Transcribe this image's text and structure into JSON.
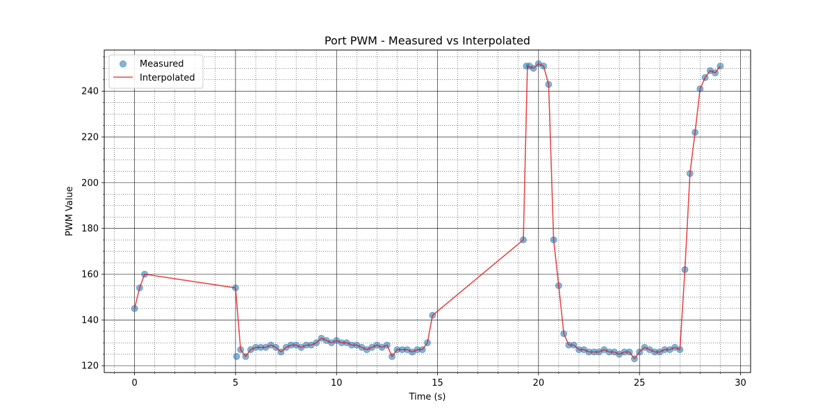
{
  "chart_data": {
    "type": "line",
    "title": "Port PWM - Measured vs Interpolated",
    "xlabel": "Time (s)",
    "ylabel": "PWM Value",
    "xlim": [
      -1.5,
      30.5
    ],
    "ylim": [
      117,
      258
    ],
    "xticks": [
      0,
      5,
      10,
      15,
      20,
      25,
      30
    ],
    "yticks": [
      120,
      140,
      160,
      180,
      200,
      220,
      240
    ],
    "grid": {
      "major": true,
      "minor": true
    },
    "legend": {
      "position": "top-left"
    },
    "colors": {
      "measured": "#1f77b4",
      "interpolated": "#e41a1c"
    },
    "series": [
      {
        "name": "Measured",
        "kind": "scatter",
        "x": [
          0,
          0.25,
          0.5,
          5,
          5.05,
          5.25,
          5.5,
          5.75,
          6,
          6.25,
          6.5,
          6.75,
          7,
          7.25,
          7.5,
          7.75,
          8,
          8.25,
          8.5,
          8.75,
          9,
          9.25,
          9.5,
          9.75,
          10,
          10.25,
          10.5,
          10.75,
          11,
          11.25,
          11.5,
          11.75,
          12,
          12.25,
          12.5,
          12.75,
          13,
          13.25,
          13.5,
          13.75,
          14,
          14.25,
          14.5,
          14.75,
          19.25,
          19.4,
          19.55,
          19.75,
          20,
          20.25,
          20.5,
          20.75,
          21,
          21.25,
          21.5,
          21.75,
          22,
          22.25,
          22.5,
          22.75,
          23,
          23.25,
          23.5,
          23.75,
          24,
          24.25,
          24.5,
          24.75,
          25,
          25.25,
          25.5,
          25.75,
          26,
          26.25,
          26.5,
          26.75,
          27,
          27.25,
          27.5,
          27.75,
          28,
          28.25,
          28.5,
          28.75,
          29
        ],
        "y": [
          145,
          154,
          160,
          154,
          124,
          127,
          124,
          127,
          128,
          128,
          128,
          129,
          128,
          126,
          128,
          129,
          129,
          128,
          129,
          129,
          130,
          132,
          131,
          130,
          131,
          130,
          130,
          129,
          129,
          128,
          127,
          128,
          129,
          128,
          129,
          124,
          127,
          127,
          127,
          126,
          127,
          127,
          130,
          142,
          175,
          251,
          251,
          250,
          252,
          251,
          243,
          175,
          155,
          134,
          129,
          129,
          127,
          127,
          126,
          126,
          126,
          127,
          126,
          126,
          125,
          126,
          126,
          123,
          126,
          128,
          127,
          126,
          126,
          127,
          127,
          128,
          127,
          162,
          204,
          222,
          241,
          246,
          249,
          248,
          251
        ]
      },
      {
        "name": "Interpolated",
        "kind": "line",
        "x": [
          0,
          0.25,
          0.5,
          5,
          5.25,
          5.5,
          5.75,
          6,
          6.25,
          6.5,
          6.75,
          7,
          7.25,
          7.5,
          7.75,
          8,
          8.25,
          8.5,
          8.75,
          9,
          9.25,
          9.5,
          9.75,
          10,
          10.25,
          10.5,
          10.75,
          11,
          11.25,
          11.5,
          11.75,
          12,
          12.25,
          12.5,
          12.75,
          13,
          13.25,
          13.5,
          13.75,
          14,
          14.25,
          14.5,
          14.75,
          19.25,
          19.45,
          19.75,
          20,
          20.25,
          20.5,
          20.75,
          21,
          21.25,
          21.5,
          21.75,
          22,
          22.25,
          22.5,
          22.75,
          23,
          23.25,
          23.5,
          23.75,
          24,
          24.25,
          24.5,
          24.75,
          25,
          25.25,
          25.5,
          25.75,
          26,
          26.25,
          26.5,
          26.75,
          27,
          27.25,
          27.5,
          27.75,
          28,
          28.25,
          28.5,
          28.75,
          29
        ],
        "y": [
          145,
          154,
          160,
          154,
          127,
          124,
          127,
          128,
          128,
          128,
          129,
          128,
          126,
          128,
          129,
          129,
          128,
          129,
          129,
          130,
          132,
          131,
          130,
          131,
          130,
          130,
          129,
          129,
          128,
          127,
          128,
          129,
          128,
          129,
          124,
          127,
          127,
          127,
          126,
          127,
          127,
          130,
          142,
          175,
          251,
          250,
          252,
          251,
          243,
          175,
          155,
          134,
          129,
          129,
          127,
          127,
          126,
          126,
          126,
          127,
          126,
          126,
          125,
          126,
          126,
          123,
          126,
          128,
          127,
          126,
          126,
          127,
          127,
          128,
          127,
          162,
          204,
          222,
          241,
          246,
          249,
          248,
          251
        ]
      }
    ]
  }
}
